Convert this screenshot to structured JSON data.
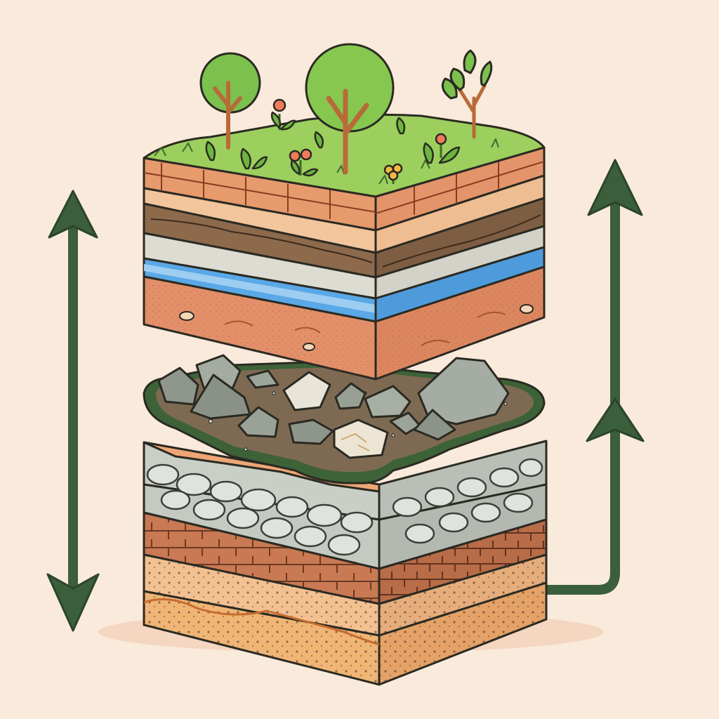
{
  "scene": {
    "background": "#faeadb",
    "line_color": "#2a2a22",
    "arrow_color": "#3b5e3b",
    "arrows": [
      {
        "name": "double-headed-arrow-left",
        "direction": "up-and-down"
      },
      {
        "name": "upward-arrow-right",
        "direction": "up",
        "extra_heads": 1
      }
    ],
    "upper_block": {
      "surface": {
        "grass": "#9ccf5d",
        "trees": 4,
        "flowers": 4
      },
      "layers_top_to_bottom": [
        {
          "name": "topsoil-brick-layer",
          "color": "#e79a6c"
        },
        {
          "name": "sand-layer",
          "color": "#f2c59c"
        },
        {
          "name": "humus-layer",
          "color": "#8d6a4c"
        },
        {
          "name": "clay-layer",
          "color": "#dcdcd2"
        },
        {
          "name": "water-table-layer",
          "color": "#5aa8e6"
        },
        {
          "name": "subsoil-layer",
          "color": "#e3906a"
        }
      ]
    },
    "rock_slab": {
      "color": "#7e6a52",
      "rim": "#3e6238",
      "rocks": 12
    },
    "lower_block": {
      "layers_top_to_bottom": [
        {
          "name": "orange-sand-layer",
          "color": "#eea676"
        },
        {
          "name": "gravel-cobble-layer",
          "color": "#c9cec7"
        },
        {
          "name": "brick-layer",
          "color": "#c97953"
        },
        {
          "name": "fine-sand-layer",
          "color": "#f3c191"
        },
        {
          "name": "bedrock-sand-layer",
          "color": "#f0b575"
        }
      ]
    }
  }
}
